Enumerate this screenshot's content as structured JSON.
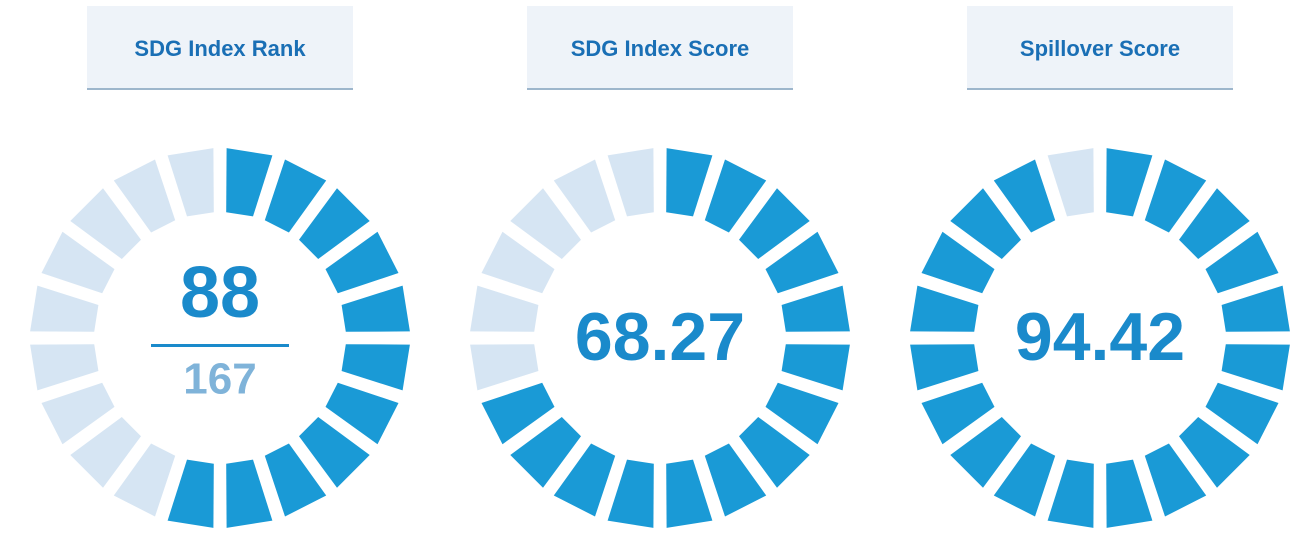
{
  "gauges": [
    {
      "title": "SDG Index Rank",
      "value": 88,
      "total": 167,
      "segments": 20
    },
    {
      "title": "SDG Index Score",
      "value": 68.27,
      "range": [
        0,
        100
      ],
      "segments": 20
    },
    {
      "title": "Spillover Score",
      "value": 94.42,
      "range": [
        0,
        100
      ],
      "segments": 20
    }
  ],
  "colors": {
    "filled": "#1a9ad6",
    "empty": "#d6e5f3",
    "text": "#1a8acb",
    "total": "#7fb3d9",
    "header": "#1a6fb5"
  }
}
